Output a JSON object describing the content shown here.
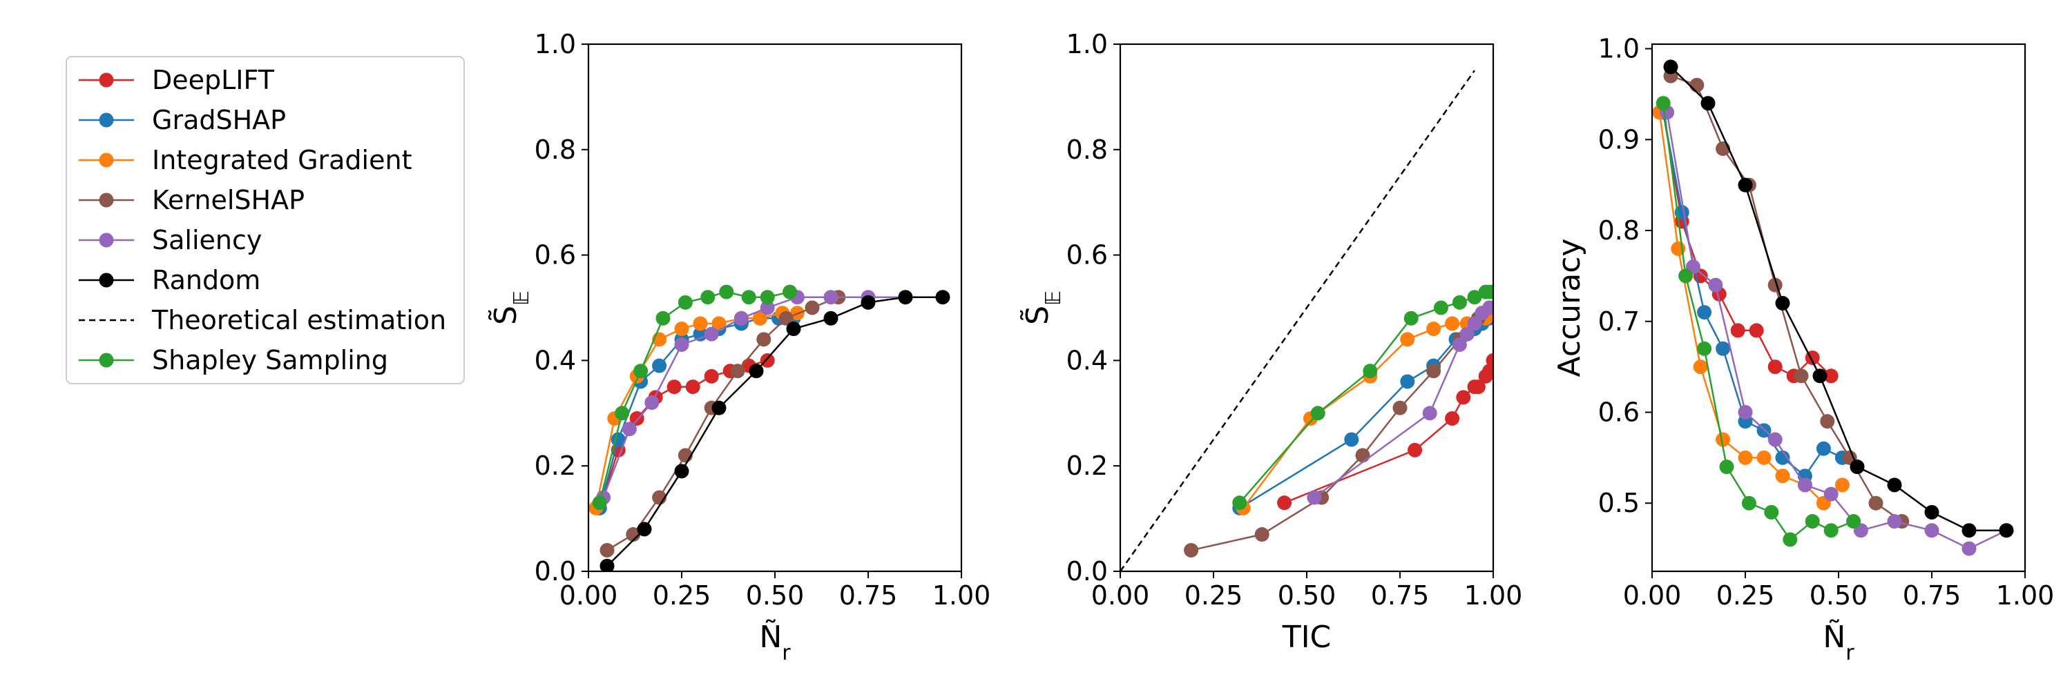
{
  "chart_data": [
    {
      "id": "panel-1",
      "type": "line",
      "xlabel": "Ñ_r",
      "ylabel": "S̃_𝔼",
      "xlim": [
        0,
        1
      ],
      "ylim": [
        0,
        1
      ],
      "xticks": [
        "0.00",
        "0.25",
        "0.50",
        "0.75",
        "1.00"
      ],
      "xtick_values": [
        0,
        0.25,
        0.5,
        0.75,
        1.0
      ],
      "yticks": [
        "0.0",
        "0.2",
        "0.4",
        "0.6",
        "0.8",
        "1.0"
      ],
      "ytick_values": [
        0,
        0.2,
        0.4,
        0.6,
        0.8,
        1.0
      ],
      "series": [
        {
          "name": "DeepLIFT",
          "x": [
            0.03,
            0.08,
            0.13,
            0.18,
            0.23,
            0.28,
            0.33,
            0.38,
            0.43,
            0.48
          ],
          "y": [
            0.12,
            0.23,
            0.29,
            0.33,
            0.35,
            0.35,
            0.37,
            0.38,
            0.39,
            0.4
          ]
        },
        {
          "name": "GradSHAP",
          "x": [
            0.03,
            0.08,
            0.14,
            0.19,
            0.25,
            0.3,
            0.35,
            0.41,
            0.46,
            0.51,
            0.55
          ],
          "y": [
            0.12,
            0.25,
            0.36,
            0.39,
            0.44,
            0.45,
            0.46,
            0.47,
            0.48,
            0.48,
            0.48
          ]
        },
        {
          "name": "Integrated Gradient",
          "x": [
            0.02,
            0.07,
            0.13,
            0.19,
            0.25,
            0.3,
            0.35,
            0.41,
            0.46,
            0.52,
            0.56
          ],
          "y": [
            0.12,
            0.29,
            0.37,
            0.44,
            0.46,
            0.47,
            0.47,
            0.48,
            0.48,
            0.49,
            0.49
          ]
        },
        {
          "name": "KernelSHAP",
          "x": [
            0.05,
            0.12,
            0.19,
            0.26,
            0.33,
            0.4,
            0.47,
            0.53,
            0.6,
            0.67
          ],
          "y": [
            0.04,
            0.07,
            0.14,
            0.22,
            0.31,
            0.38,
            0.44,
            0.48,
            0.5,
            0.52
          ]
        },
        {
          "name": "Saliency",
          "x": [
            0.04,
            0.11,
            0.17,
            0.25,
            0.33,
            0.41,
            0.48,
            0.56,
            0.65,
            0.75,
            0.85
          ],
          "y": [
            0.14,
            0.27,
            0.32,
            0.43,
            0.45,
            0.48,
            0.5,
            0.52,
            0.52,
            0.52,
            0.52
          ]
        },
        {
          "name": "Random",
          "x": [
            0.05,
            0.15,
            0.25,
            0.35,
            0.45,
            0.55,
            0.65,
            0.75,
            0.85,
            0.95
          ],
          "y": [
            0.01,
            0.08,
            0.19,
            0.31,
            0.38,
            0.46,
            0.48,
            0.51,
            0.52,
            0.52
          ]
        },
        {
          "name": "Shapley Sampling",
          "x": [
            0.03,
            0.09,
            0.14,
            0.2,
            0.26,
            0.32,
            0.37,
            0.43,
            0.48,
            0.54
          ],
          "y": [
            0.13,
            0.3,
            0.38,
            0.48,
            0.51,
            0.52,
            0.53,
            0.52,
            0.52,
            0.53
          ]
        }
      ]
    },
    {
      "id": "panel-2",
      "type": "line",
      "xlabel": "TIC",
      "ylabel": "S̃_𝔼",
      "xlim": [
        0,
        1
      ],
      "ylim": [
        0,
        1
      ],
      "xticks": [
        "0.00",
        "0.25",
        "0.50",
        "0.75",
        "1.00"
      ],
      "xtick_values": [
        0,
        0.25,
        0.5,
        0.75,
        1.0
      ],
      "yticks": [
        "0.0",
        "0.2",
        "0.4",
        "0.6",
        "0.8",
        "1.0"
      ],
      "ytick_values": [
        0,
        0.2,
        0.4,
        0.6,
        0.8,
        1.0
      ],
      "series": [
        {
          "name": "Theoretical estimation",
          "x": [
            0,
            0.95
          ],
          "y": [
            0,
            0.95
          ],
          "dashed": true
        },
        {
          "name": "DeepLIFT",
          "x": [
            0.44,
            0.79,
            0.89,
            0.92,
            0.95,
            0.96,
            0.98,
            0.99,
            1.0
          ],
          "y": [
            0.13,
            0.23,
            0.29,
            0.33,
            0.35,
            0.35,
            0.37,
            0.38,
            0.4
          ]
        },
        {
          "name": "GradSHAP",
          "x": [
            0.32,
            0.62,
            0.77,
            0.84,
            0.9,
            0.93,
            0.95,
            0.97,
            0.98,
            0.99
          ],
          "y": [
            0.12,
            0.25,
            0.36,
            0.39,
            0.44,
            0.45,
            0.46,
            0.47,
            0.48,
            0.48
          ]
        },
        {
          "name": "Integrated Gradient",
          "x": [
            0.33,
            0.51,
            0.67,
            0.77,
            0.84,
            0.89,
            0.93,
            0.96,
            0.98,
            1.0
          ],
          "y": [
            0.12,
            0.29,
            0.37,
            0.44,
            0.46,
            0.47,
            0.47,
            0.48,
            0.48,
            0.49
          ]
        },
        {
          "name": "KernelSHAP",
          "x": [
            0.19,
            0.38,
            0.54,
            0.65,
            0.75,
            0.84,
            0.91,
            0.96,
            0.99
          ],
          "y": [
            0.04,
            0.07,
            0.14,
            0.22,
            0.31,
            0.38,
            0.44,
            0.48,
            0.5
          ]
        },
        {
          "name": "Saliency",
          "x": [
            0.52,
            0.83,
            0.91,
            0.93,
            0.95,
            0.97,
            0.99
          ],
          "y": [
            0.14,
            0.3,
            0.43,
            0.45,
            0.47,
            0.49,
            0.5
          ]
        },
        {
          "name": "Shapley Sampling",
          "x": [
            0.32,
            0.53,
            0.67,
            0.78,
            0.86,
            0.91,
            0.95,
            0.98,
            0.99,
            1.0
          ],
          "y": [
            0.13,
            0.3,
            0.38,
            0.48,
            0.5,
            0.51,
            0.52,
            0.53,
            0.53,
            0.53
          ]
        }
      ]
    },
    {
      "id": "panel-3",
      "type": "line",
      "xlabel": "Ñ_r",
      "ylabel": "Accuracy",
      "xlim": [
        0,
        1
      ],
      "ylim": [
        0.425,
        1.005
      ],
      "xticks": [
        "0.00",
        "0.25",
        "0.50",
        "0.75",
        "1.00"
      ],
      "xtick_values": [
        0,
        0.25,
        0.5,
        0.75,
        1.0
      ],
      "yticks": [
        "0.5",
        "0.6",
        "0.7",
        "0.8",
        "0.9",
        "1.0"
      ],
      "ytick_values": [
        0.5,
        0.6,
        0.7,
        0.8,
        0.9,
        1.0
      ],
      "series": [
        {
          "name": "DeepLIFT",
          "x": [
            0.03,
            0.08,
            0.13,
            0.18,
            0.23,
            0.28,
            0.33,
            0.38,
            0.43,
            0.48
          ],
          "y": [
            0.93,
            0.81,
            0.75,
            0.73,
            0.69,
            0.69,
            0.65,
            0.64,
            0.66,
            0.64
          ]
        },
        {
          "name": "GradSHAP",
          "x": [
            0.03,
            0.08,
            0.14,
            0.19,
            0.25,
            0.3,
            0.35,
            0.41,
            0.46,
            0.51,
            0.55
          ],
          "y": [
            0.93,
            0.82,
            0.71,
            0.67,
            0.59,
            0.58,
            0.55,
            0.53,
            0.56,
            0.55,
            0.54
          ]
        },
        {
          "name": "Integrated Gradient",
          "x": [
            0.02,
            0.07,
            0.13,
            0.19,
            0.25,
            0.3,
            0.35,
            0.41,
            0.46,
            0.51
          ],
          "y": [
            0.93,
            0.78,
            0.65,
            0.57,
            0.55,
            0.55,
            0.53,
            0.52,
            0.5,
            0.52
          ]
        },
        {
          "name": "KernelSHAP",
          "x": [
            0.05,
            0.12,
            0.19,
            0.26,
            0.33,
            0.4,
            0.47,
            0.53,
            0.6,
            0.67
          ],
          "y": [
            0.97,
            0.96,
            0.89,
            0.85,
            0.74,
            0.64,
            0.59,
            0.55,
            0.5,
            0.48
          ]
        },
        {
          "name": "Saliency",
          "x": [
            0.04,
            0.11,
            0.17,
            0.25,
            0.33,
            0.41,
            0.48,
            0.56,
            0.65,
            0.75,
            0.85,
            0.95
          ],
          "y": [
            0.93,
            0.76,
            0.74,
            0.6,
            0.57,
            0.52,
            0.51,
            0.47,
            0.48,
            0.47,
            0.45,
            0.47
          ]
        },
        {
          "name": "Random",
          "x": [
            0.05,
            0.15,
            0.25,
            0.35,
            0.45,
            0.55,
            0.65,
            0.75,
            0.85,
            0.95
          ],
          "y": [
            0.98,
            0.94,
            0.85,
            0.72,
            0.64,
            0.54,
            0.52,
            0.49,
            0.47,
            0.47
          ]
        },
        {
          "name": "Shapley Sampling",
          "x": [
            0.03,
            0.09,
            0.14,
            0.2,
            0.26,
            0.32,
            0.37,
            0.43,
            0.48,
            0.54
          ],
          "y": [
            0.94,
            0.75,
            0.67,
            0.54,
            0.5,
            0.49,
            0.46,
            0.48,
            0.47,
            0.48
          ]
        }
      ]
    }
  ],
  "legend": {
    "placement": "left",
    "items": [
      {
        "name": "DeepLIFT",
        "color": "#d62728",
        "marker": true
      },
      {
        "name": "GradSHAP",
        "color": "#1f77b4",
        "marker": true
      },
      {
        "name": "Integrated Gradient",
        "color": "#ff7f0e",
        "marker": true
      },
      {
        "name": "KernelSHAP",
        "color": "#8c564b",
        "marker": true
      },
      {
        "name": "Saliency",
        "color": "#9467bd",
        "marker": true
      },
      {
        "name": "Random",
        "color": "#000000",
        "marker": true
      },
      {
        "name": "Theoretical estimation",
        "color": "#000000",
        "marker": false,
        "dashed": true
      },
      {
        "name": "Shapley Sampling",
        "color": "#2ca02c",
        "marker": true
      }
    ]
  },
  "colors": {
    "DeepLIFT": "#d62728",
    "GradSHAP": "#1f77b4",
    "Integrated Gradient": "#ff7f0e",
    "KernelSHAP": "#8c564b",
    "Saliency": "#9467bd",
    "Random": "#000000",
    "Theoretical estimation": "#000000",
    "Shapley Sampling": "#2ca02c"
  }
}
